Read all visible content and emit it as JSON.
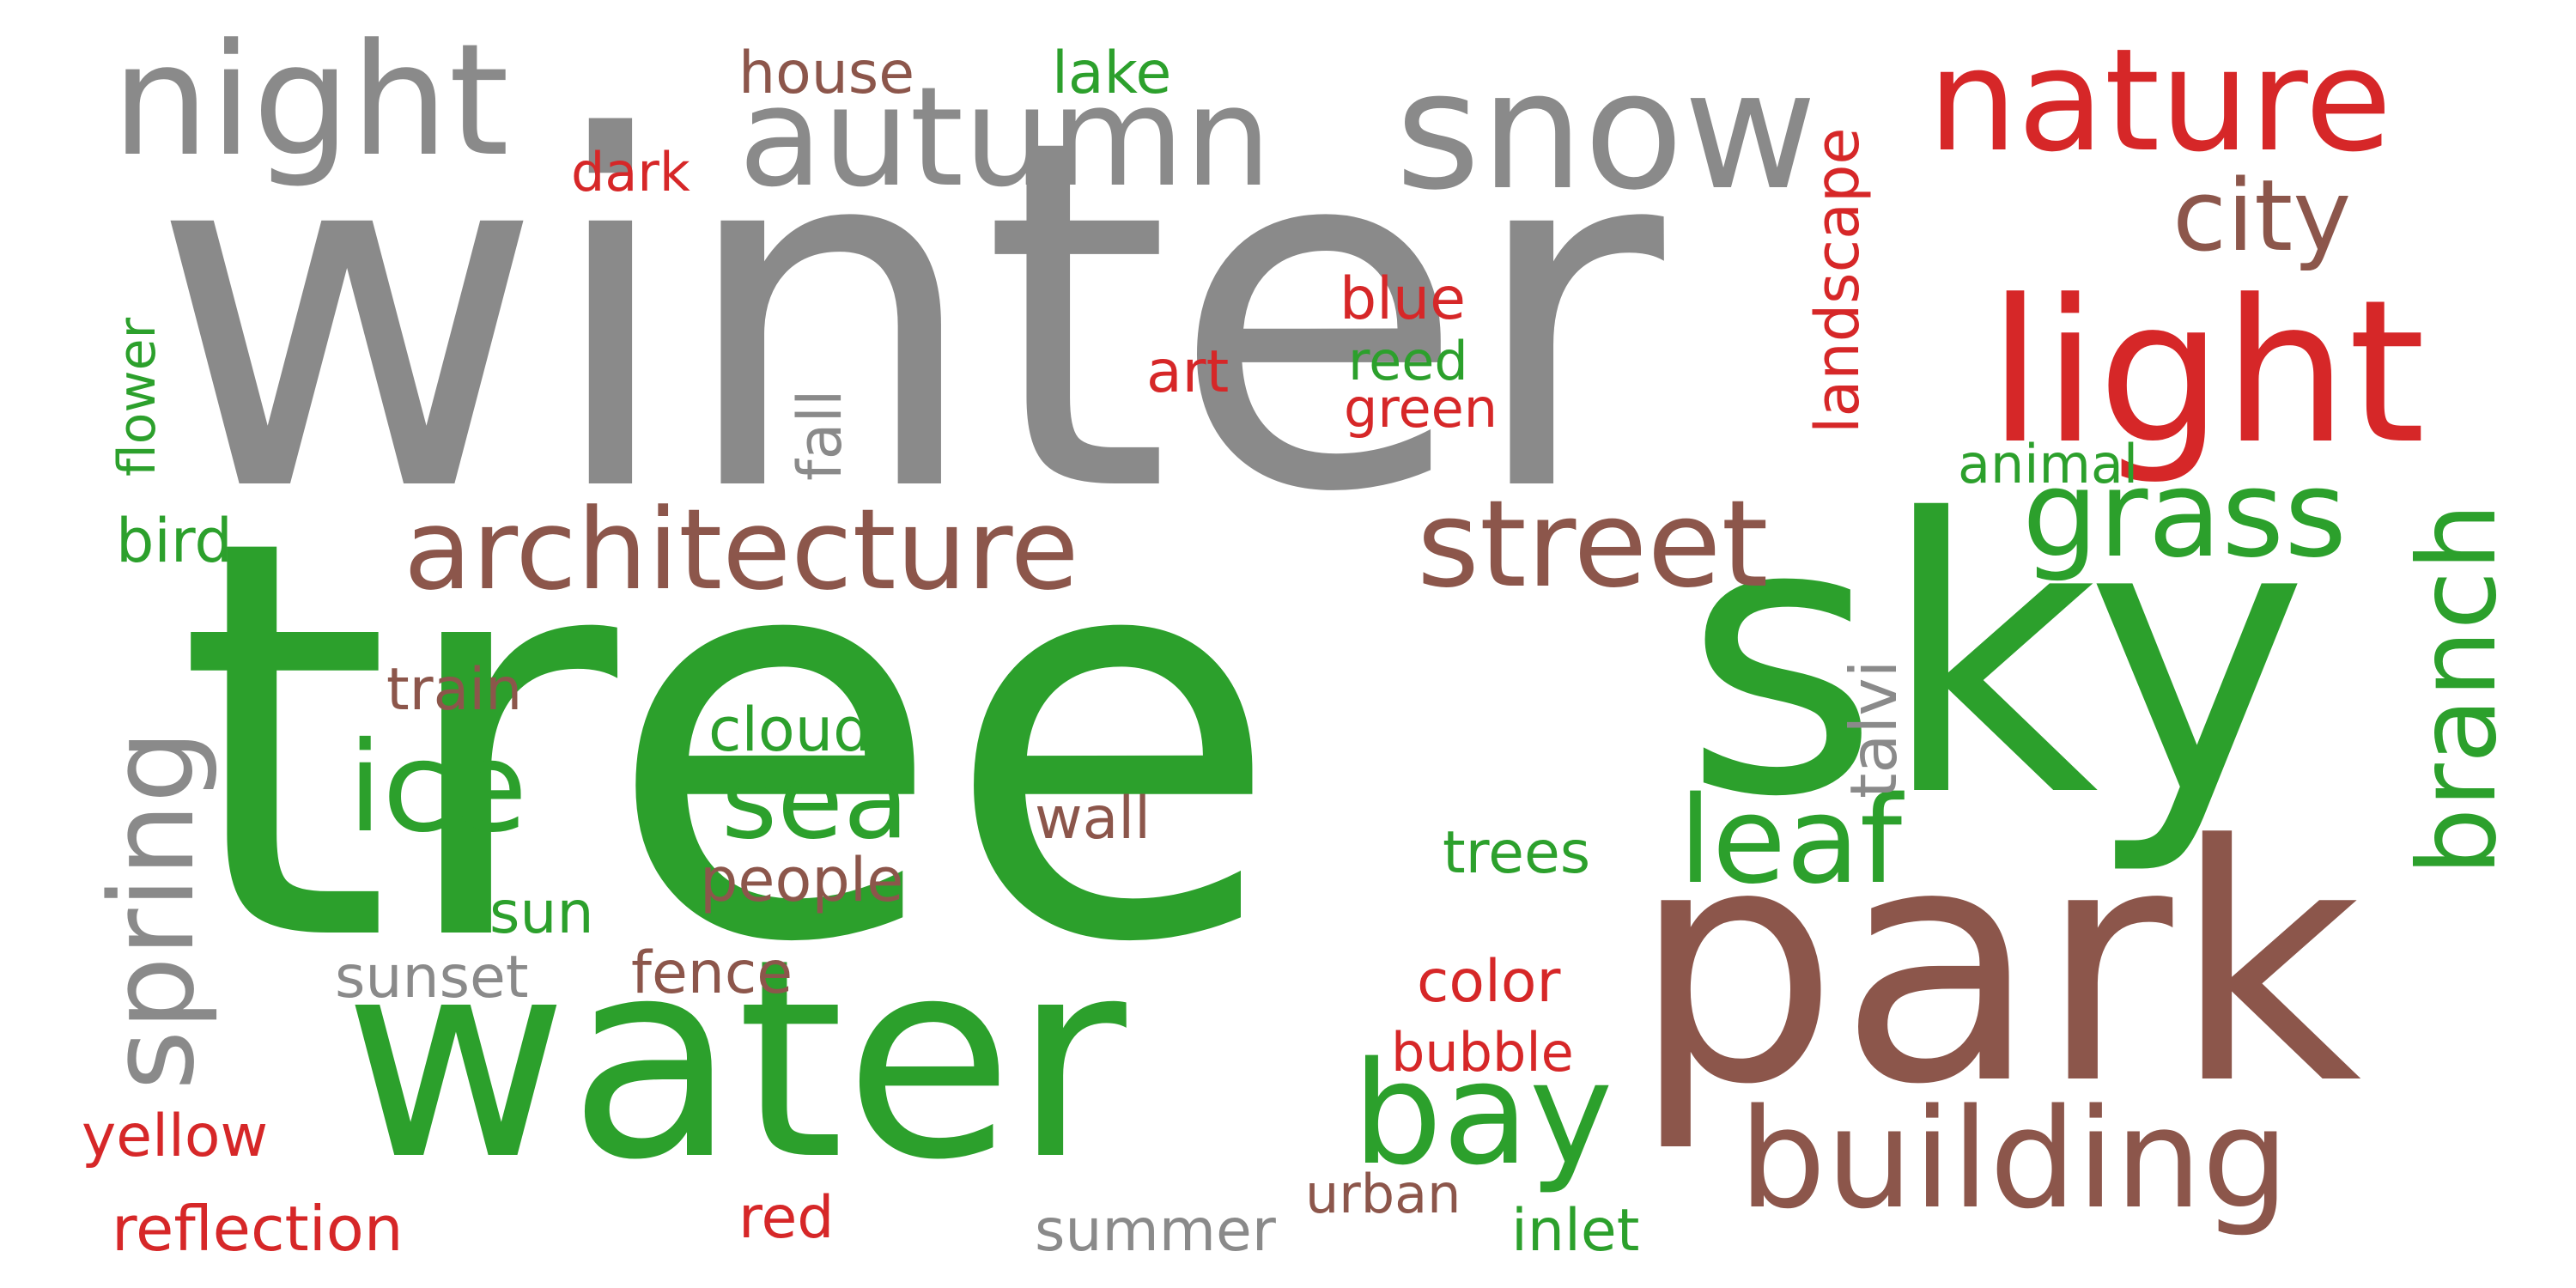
{
  "colors": {
    "gray": "#8a8a8a",
    "green": "#2ca02c",
    "brown": "#8c564b",
    "red": "#d62728"
  },
  "words": {
    "winter": "winter",
    "tree": "tree",
    "sky": "sky",
    "park": "park",
    "water": "water",
    "night": "night",
    "autumn": "autumn",
    "snow": "snow",
    "nature": "nature",
    "light": "light",
    "city": "city",
    "architecture": "architecture",
    "street": "street",
    "grass": "grass",
    "branch": "branch",
    "building": "building",
    "ice": "ice",
    "sea": "sea",
    "bay": "bay",
    "leaf": "leaf",
    "spring": "spring",
    "landscape": "landscape",
    "house": "house",
    "lake": "lake",
    "dark": "dark",
    "blue": "blue",
    "art": "art",
    "reed": "reed",
    "green": "green",
    "flower": "flower",
    "fall": "fall",
    "animal": "animal",
    "bird": "bird",
    "talvi": "talvi",
    "train": "train",
    "cloud": "cloud",
    "wall": "wall",
    "people": "people",
    "trees": "trees",
    "sun": "sun",
    "sunset": "sunset",
    "fence": "fence",
    "color": "color",
    "bubble": "bubble",
    "yellow": "yellow",
    "reflection": "reflection",
    "red": "red",
    "summer": "summer",
    "urban": "urban",
    "inlet": "inlet"
  }
}
